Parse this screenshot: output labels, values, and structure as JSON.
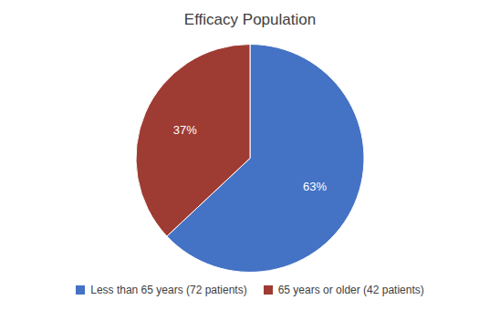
{
  "chart_data": {
    "type": "pie",
    "title": "Efficacy Population",
    "categories": [
      "Less than 65 years (72 patients)",
      "65 years or older (42 patients)"
    ],
    "values": [
      63,
      37
    ],
    "value_labels": [
      "63%",
      "37%"
    ],
    "colors": [
      "#4472C4",
      "#9E3B32"
    ],
    "data_labels": true,
    "legend": "bottom"
  }
}
